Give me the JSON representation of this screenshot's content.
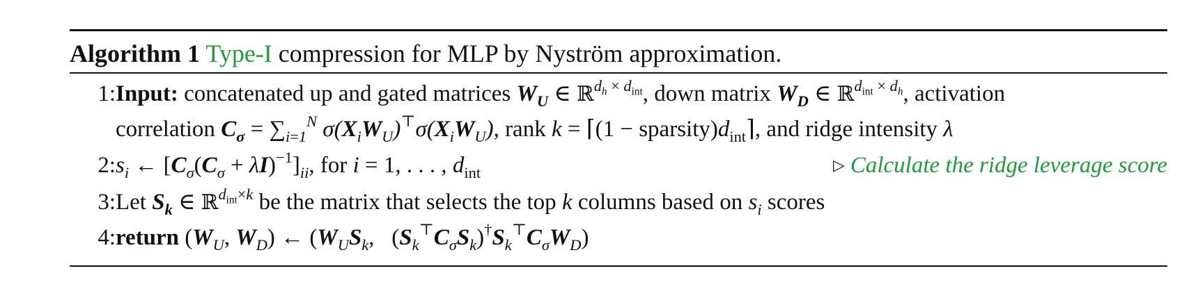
{
  "caption": {
    "label": "Algorithm 1",
    "type": "Type-I",
    "rest": " compression for MLP by Nyström approximation."
  },
  "lines": [
    {
      "number": "1:",
      "keyword": "Input:",
      "part1": " concatenated up and gated matrices ",
      "part2": ", down matrix ",
      "part3": ", activation",
      "cont1": "correlation ",
      "cont2": ", rank ",
      "cont3": ", and ridge intensity "
    },
    {
      "number": "2:",
      "text_for": ", for ",
      "comment": "Calculate the ridge leverage score"
    },
    {
      "number": "3:",
      "lead": "Let ",
      "mid": " be the matrix that selects the top ",
      "mid2": " columns based on ",
      "end": " scores"
    },
    {
      "number": "4:",
      "keyword": "return"
    }
  ],
  "colors": {
    "accent_green": "#219a3c",
    "text": "#111111"
  }
}
